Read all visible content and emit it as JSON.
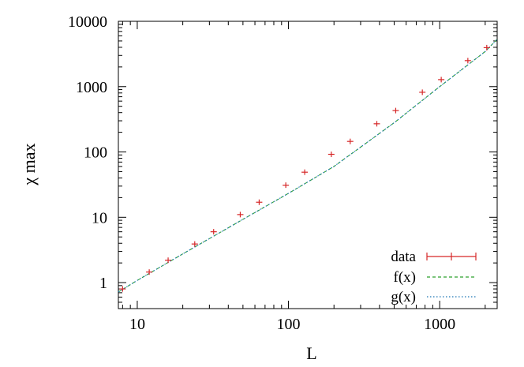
{
  "chart_data": {
    "type": "scatter",
    "xlabel": "L",
    "ylabel": "χ max",
    "xscale": "log",
    "yscale": "log",
    "xlim": [
      7.5,
      2400
    ],
    "ylim": [
      0.4,
      10000
    ],
    "x_ticks": [
      {
        "value": 10,
        "label": "10"
      },
      {
        "value": 100,
        "label": "100"
      },
      {
        "value": 1000,
        "label": "1000"
      }
    ],
    "y_ticks": [
      {
        "value": 1,
        "label": "1"
      },
      {
        "value": 10,
        "label": "10"
      },
      {
        "value": 100,
        "label": "100"
      },
      {
        "value": 1000,
        "label": "1000"
      },
      {
        "value": 10000,
        "label": "10000"
      }
    ],
    "grid": false,
    "legend_position": "bottom-right",
    "series": [
      {
        "name": "data",
        "style": "points-with-errorbars",
        "color": "#d62728",
        "points": [
          {
            "x": 8,
            "y": 0.8
          },
          {
            "x": 12,
            "y": 1.45
          },
          {
            "x": 16,
            "y": 2.2
          },
          {
            "x": 24,
            "y": 3.9
          },
          {
            "x": 32,
            "y": 6.0
          },
          {
            "x": 48,
            "y": 11
          },
          {
            "x": 64,
            "y": 17
          },
          {
            "x": 96,
            "y": 31
          },
          {
            "x": 128,
            "y": 49
          },
          {
            "x": 192,
            "y": 92
          },
          {
            "x": 256,
            "y": 145
          },
          {
            "x": 384,
            "y": 270
          },
          {
            "x": 512,
            "y": 430
          },
          {
            "x": 768,
            "y": 820
          },
          {
            "x": 1024,
            "y": 1280
          },
          {
            "x": 1536,
            "y": 2500
          },
          {
            "x": 2048,
            "y": 3950
          }
        ]
      },
      {
        "name": "f(x)",
        "style": "dashed-line",
        "color": "#2ca02c",
        "x": [
          7.5,
          10,
          20,
          50,
          100,
          200,
          500,
          1000,
          2000,
          2400
        ],
        "y": [
          0.72,
          1.08,
          2.75,
          9.3,
          23.2,
          60,
          280,
          1000,
          3450,
          5300
        ]
      },
      {
        "name": "g(x)",
        "style": "dotted-line",
        "color": "#1f77b4",
        "x": [
          7.5,
          10,
          20,
          50,
          100,
          200,
          500,
          1000,
          2000,
          2400
        ],
        "y": [
          0.72,
          1.08,
          2.75,
          9.3,
          23.2,
          60,
          280,
          1000,
          3450,
          5300
        ]
      }
    ]
  }
}
